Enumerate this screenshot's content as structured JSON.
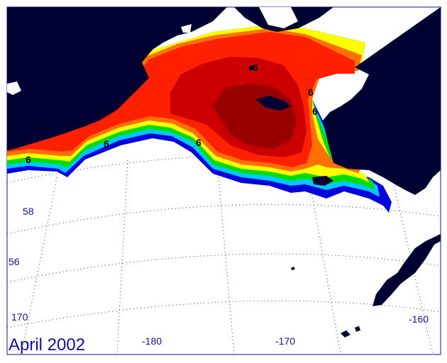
{
  "title": "April 2002",
  "latitude_labels": [
    "58",
    "56"
  ],
  "longitude_labels": [
    "170",
    "-180",
    "-170",
    "-160"
  ],
  "contour_labels": [
    "6",
    "6",
    "6",
    "6",
    "6",
    "6"
  ],
  "colors": {
    "land": "#000033",
    "open_water": "#ffffff",
    "graticule": "#3a3a3a",
    "frame": "#1010a0",
    "label_text": "#1010a0",
    "scale": [
      "#0000dd",
      "#0050ff",
      "#00c8ff",
      "#00dd00",
      "#aaff00",
      "#ffff00",
      "#ffb000",
      "#ff7000",
      "#ff2000",
      "#ee0000",
      "#cc0000",
      "#990000"
    ]
  }
}
